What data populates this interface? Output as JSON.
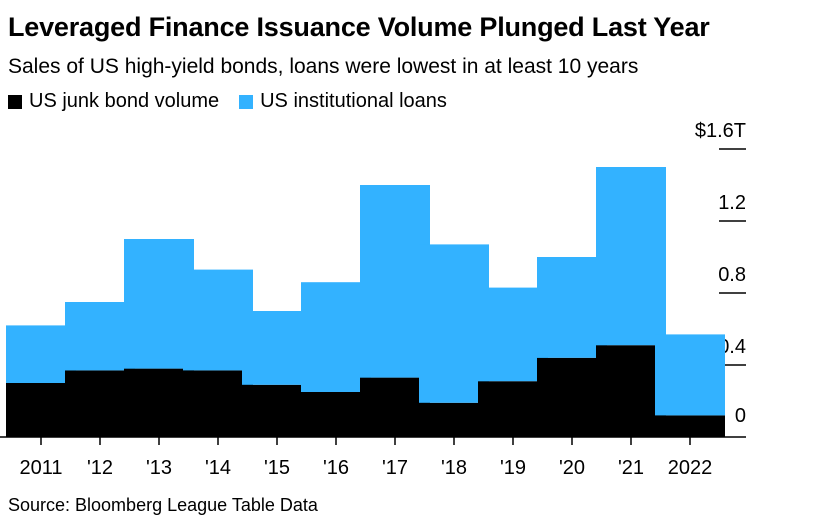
{
  "title": "Leveraged Finance Issuance Volume Plunged Last Year",
  "subtitle": "Sales of US high-yield bonds, loans were lowest in at least 10 years",
  "source": "Source: Bloomberg League Table Data",
  "colors": {
    "junk_bonds": "#000000",
    "institutional_loans": "#33b2ff",
    "axis": "#000000"
  },
  "chart_data": {
    "type": "bar",
    "stacked": true,
    "categories": [
      "2011",
      "'12",
      "'13",
      "'14",
      "'15",
      "'16",
      "'17",
      "'18",
      "'19",
      "'20",
      "'21",
      "2022"
    ],
    "series": [
      {
        "name": "US junk bond volume",
        "color": "#000000",
        "values": [
          0.3,
          0.37,
          0.38,
          0.37,
          0.29,
          0.25,
          0.33,
          0.19,
          0.31,
          0.44,
          0.51,
          0.12
        ]
      },
      {
        "name": "US institutional loans",
        "color": "#33b2ff",
        "values": [
          0.32,
          0.38,
          0.72,
          0.56,
          0.41,
          0.61,
          1.07,
          0.88,
          0.52,
          0.56,
          0.99,
          0.45
        ]
      }
    ],
    "yaxis": {
      "ticks": [
        0,
        0.4,
        0.8,
        1.2,
        1.6
      ],
      "tick_labels": [
        "0",
        "0.4",
        "0.8",
        "1.2",
        "$1.6T"
      ],
      "position": "right",
      "ylim": [
        0,
        1.6
      ]
    },
    "legend": "top-left",
    "grid": false
  }
}
